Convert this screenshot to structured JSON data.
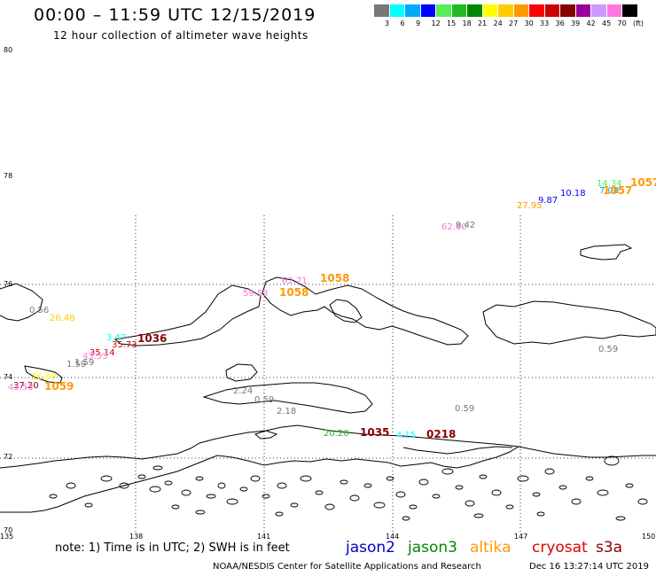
{
  "header": {
    "title": "00:00 – 11:59 UTC 12/15/2019",
    "subtitle": "12 hour collection of altimeter wave heights"
  },
  "colorbar": {
    "colors": [
      "#777777",
      "#00ffff",
      "#00aaff",
      "#0000ff",
      "#55ee55",
      "#22bb22",
      "#008800",
      "#ffff00",
      "#ffcc00",
      "#ff9900",
      "#ff0000",
      "#cc0000",
      "#880000",
      "#990099",
      "#cc99ff",
      "#ff77dd",
      "#000000"
    ],
    "ticks": [
      "3",
      "6",
      "9",
      "12",
      "15",
      "18",
      "21",
      "24",
      "27",
      "30",
      "33",
      "36",
      "39",
      "42",
      "45",
      "70",
      "(ft)"
    ]
  },
  "map": {
    "lat_labels": [
      "80",
      "78",
      "76",
      "74",
      "72",
      "70"
    ],
    "lon_labels": [
      "135",
      "138",
      "141",
      "144",
      "147",
      "150"
    ]
  },
  "wave_labels": [
    {
      "text": "14.34",
      "color": "#55ee55"
    },
    {
      "text": "1057",
      "color": "#ff9900"
    },
    {
      "text": "7.00",
      "color": "#00aaff"
    },
    {
      "text": "1057",
      "color": "#ff9900"
    },
    {
      "text": "10.18",
      "color": "#0000ff"
    },
    {
      "text": "9.87",
      "color": "#0000ff"
    },
    {
      "text": "27.95",
      "color": "#ff9900"
    },
    {
      "text": "62.60",
      "color": "#ff77dd"
    },
    {
      "text": "9.42",
      "color": "#777777"
    },
    {
      "text": "62.71",
      "color": "#ff77dd"
    },
    {
      "text": "1058",
      "color": "#ff9900"
    },
    {
      "text": "59.53",
      "color": "#ff77dd"
    },
    {
      "text": "1058",
      "color": "#ff9900"
    },
    {
      "text": "0.56",
      "color": "#777777"
    },
    {
      "text": "26.48",
      "color": "#ffcc00"
    },
    {
      "text": "3.47",
      "color": "#00ffff"
    },
    {
      "text": "1036",
      "color": "#880000"
    },
    {
      "text": "35.73",
      "color": "#cc0000"
    },
    {
      "text": "35.14",
      "color": "#cc0000"
    },
    {
      "text": "43.53",
      "color": "#ff77dd"
    },
    {
      "text": "1.59",
      "color": "#777777"
    },
    {
      "text": "1.59",
      "color": "#777777"
    },
    {
      "text": "0.59",
      "color": "#777777"
    },
    {
      "text": "2.24",
      "color": "#777777"
    },
    {
      "text": "0.59",
      "color": "#777777"
    },
    {
      "text": "2.18",
      "color": "#777777"
    },
    {
      "text": "0.59",
      "color": "#777777"
    },
    {
      "text": "37.20",
      "color": "#880000"
    },
    {
      "text": "43.53",
      "color": "#ff77dd"
    },
    {
      "text": "26.69",
      "color": "#ffff00"
    },
    {
      "text": "1059",
      "color": "#ff9900"
    },
    {
      "text": "20.20",
      "color": "#22bb22"
    },
    {
      "text": "1035",
      "color": "#880000"
    },
    {
      "text": "4.15",
      "color": "#00ffff"
    },
    {
      "text": "0218",
      "color": "#880000"
    }
  ],
  "footer": {
    "note": "note:  1) Time is in UTC;  2) SWH is in feet",
    "satellites": [
      {
        "name": "jason2",
        "color": "#0000cc"
      },
      {
        "name": "jason3",
        "color": "#008800"
      },
      {
        "name": "altika",
        "color": "#ff9900"
      },
      {
        "name": "cryosat",
        "color": "#dd0000"
      },
      {
        "name": "s3a",
        "color": "#880000"
      }
    ],
    "credit": "NOAA/NESDIS Center for Satellite Applications and Research",
    "timestamp": "Dec 16 13:27:14 UTC 2019"
  }
}
